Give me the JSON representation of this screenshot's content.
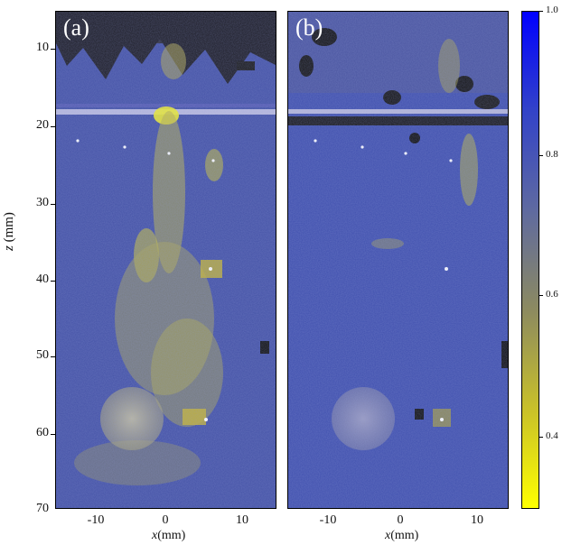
{
  "panels": [
    {
      "id": "a",
      "label": "(a)"
    },
    {
      "id": "b",
      "label": "(b)"
    }
  ],
  "axes": {
    "y_label": "z",
    "y_unit": " (mm)",
    "x_label": "x",
    "x_unit": "(mm)",
    "y_ticks": [
      "10",
      "20",
      "30",
      "40",
      "50",
      "60",
      "70"
    ],
    "x_ticks": [
      "-10",
      "0",
      "10"
    ]
  },
  "colorbar": {
    "ticks": [
      "1.0",
      "0.8",
      "0.6",
      "0.4"
    ],
    "colors": {
      "top": "#0000ff",
      "bottom": "#ffff00"
    }
  }
}
